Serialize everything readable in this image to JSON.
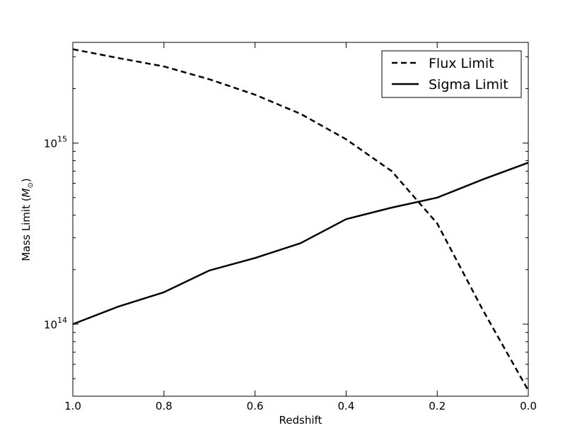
{
  "chart_data": {
    "type": "line",
    "xlabel": "Redshift",
    "ylabel_text": "Mass Limit (",
    "ylabel_symbol": "M",
    "ylabel_sub": "⊙",
    "ylabel_close": ")",
    "x_reversed": true,
    "xlim": [
      1.0,
      0.0
    ],
    "ylim": [
      40000000000000,
      3600000000000000
    ],
    "yscale": "log",
    "x_ticks": [
      {
        "value": 1.0,
        "label": "1.0"
      },
      {
        "value": 0.8,
        "label": "0.8"
      },
      {
        "value": 0.6,
        "label": "0.6"
      },
      {
        "value": 0.4,
        "label": "0.4"
      },
      {
        "value": 0.2,
        "label": "0.2"
      },
      {
        "value": 0.0,
        "label": "0.0"
      }
    ],
    "y_major_ticks": [
      {
        "value": 100000000000000,
        "base": "10",
        "exp": "14"
      },
      {
        "value": 1000000000000000,
        "base": "10",
        "exp": "15"
      }
    ],
    "y_minor_ticks": [
      50000000000000,
      60000000000000,
      70000000000000,
      80000000000000,
      90000000000000,
      200000000000000,
      300000000000000,
      400000000000000,
      500000000000000,
      600000000000000,
      700000000000000,
      800000000000000,
      900000000000000,
      2000000000000000,
      3000000000000000
    ],
    "legend_position": "top-right",
    "grid": false,
    "series": [
      {
        "name": "Flux Limit",
        "style": "dashed",
        "color": "#000000",
        "x": [
          1.0,
          0.9,
          0.8,
          0.7,
          0.6,
          0.5,
          0.4,
          0.3,
          0.2,
          0.1,
          0.0
        ],
        "y": [
          3300000000000000,
          2950000000000000,
          2650000000000000,
          2250000000000000,
          1850000000000000,
          1450000000000000,
          1050000000000000,
          700000000000000,
          360000000000000,
          120000000000000,
          43000000000000
        ]
      },
      {
        "name": "Sigma Limit",
        "style": "solid",
        "color": "#000000",
        "x": [
          1.0,
          0.9,
          0.8,
          0.7,
          0.6,
          0.5,
          0.4,
          0.3,
          0.2,
          0.1,
          0.0
        ],
        "y": [
          100000000000000,
          125000000000000,
          150000000000000,
          198000000000000,
          232000000000000,
          280000000000000,
          380000000000000,
          440000000000000,
          500000000000000,
          630000000000000,
          780000000000000
        ]
      }
    ]
  }
}
